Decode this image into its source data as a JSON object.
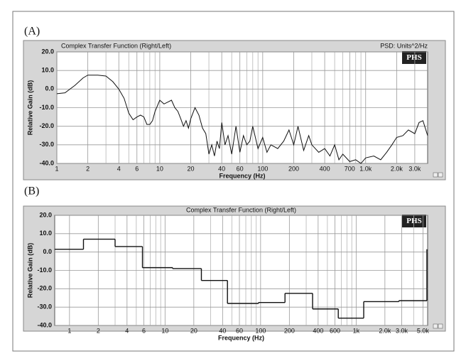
{
  "chart_data": [
    {
      "type": "line",
      "panel_label": "(A)",
      "title": "Complex Transfer Function (Right/Left)",
      "note": "PSD: Units^2/Hz",
      "badge": "PHS",
      "xlabel": "Frequency (Hz)",
      "ylabel": "Relative Gain (dB)",
      "xscale": "log",
      "grid": true,
      "color": "#111111",
      "title_align": "left",
      "xlim": [
        1,
        4000
      ],
      "ylim": [
        -40,
        20
      ],
      "xticks": [
        1,
        2,
        4,
        6,
        10,
        20,
        40,
        60,
        100,
        200,
        400,
        700,
        {
          "value": 1000,
          "label": "1.0k"
        },
        {
          "value": 2000,
          "label": "2.0k"
        },
        {
          "value": 3000,
          "label": "3.0k"
        }
      ],
      "minor_xticks": [
        3,
        5,
        7,
        8,
        9,
        30,
        50,
        70,
        80,
        90,
        300,
        500,
        600,
        800,
        900
      ],
      "yticks": [
        {
          "value": 20,
          "label": "20.0"
        },
        {
          "value": 10,
          "label": "10.0"
        },
        {
          "value": 0,
          "label": "0.0"
        },
        {
          "value": -10,
          "label": "-10.0"
        },
        {
          "value": -20,
          "label": "-20.0"
        },
        {
          "value": -30,
          "label": "-30.0"
        },
        {
          "value": -40,
          "label": "-40.0"
        }
      ],
      "x": [
        1,
        1.2,
        1.5,
        1.8,
        2,
        2.5,
        3,
        3.5,
        4,
        4.5,
        5,
        5.5,
        6,
        6.5,
        7,
        7.5,
        8,
        8.5,
        9,
        10,
        11,
        12,
        13,
        14,
        15,
        16,
        17,
        18,
        19,
        20,
        22,
        24,
        26,
        28,
        30,
        32,
        34,
        36,
        38,
        40,
        43,
        46,
        50,
        55,
        60,
        65,
        70,
        75,
        80,
        90,
        100,
        110,
        120,
        140,
        160,
        180,
        200,
        220,
        250,
        280,
        300,
        350,
        400,
        450,
        500,
        550,
        600,
        700,
        800,
        900,
        1000,
        1200,
        1400,
        1600,
        1800,
        2000,
        2300,
        2600,
        3000,
        3300,
        3600,
        4000
      ],
      "values": [
        -2.5,
        -2,
        2,
        6,
        7.5,
        7.5,
        7,
        4,
        0,
        -5,
        -13,
        -16.5,
        -15,
        -14,
        -15,
        -19,
        -19,
        -17,
        -12,
        -6,
        -8,
        -7,
        -6,
        -10,
        -12,
        -16,
        -20,
        -17,
        -21,
        -16,
        -10,
        -14,
        -21,
        -24,
        -35,
        -30,
        -36,
        -28,
        -32,
        -18,
        -30,
        -25,
        -35,
        -20,
        -34,
        -25,
        -30,
        -28,
        -20,
        -32,
        -26,
        -34,
        -30,
        -32,
        -28,
        -22,
        -30,
        -20,
        -33,
        -25,
        -30,
        -34,
        -32,
        -36,
        -30,
        -38,
        -35,
        -39,
        -38,
        -40,
        -37,
        -36,
        -38,
        -34,
        -30,
        -26,
        -25,
        -22,
        -24,
        -18,
        -17,
        -25
      ]
    },
    {
      "type": "step",
      "panel_label": "(B)",
      "title": "Complex Transfer Function (Right/Left)",
      "badge": "PHS",
      "xlabel": "Frequency (Hz)",
      "ylabel": "Relative Gain (dB)",
      "xscale": "log",
      "grid": true,
      "color": "#111111",
      "title_align": "center",
      "xlim": [
        0.7,
        5600
      ],
      "ylim": [
        -40,
        20
      ],
      "xticks": [
        1,
        2,
        4,
        6,
        10,
        20,
        40,
        60,
        100,
        200,
        400,
        600,
        {
          "value": 1000,
          "label": "1k"
        },
        {
          "value": 2000,
          "label": "2.0k"
        },
        {
          "value": 3000,
          "label": "3.0k"
        },
        {
          "value": 5000,
          "label": "5.0k"
        }
      ],
      "minor_xticks": [
        3,
        5,
        7,
        8,
        9,
        30,
        50,
        70,
        80,
        90,
        300,
        500,
        700,
        800,
        900,
        4000
      ],
      "yticks": [
        {
          "value": 20,
          "label": "20.0"
        },
        {
          "value": 10,
          "label": "10.0"
        },
        {
          "value": 0,
          "label": "0.0"
        },
        {
          "value": -10,
          "label": "-10.0"
        },
        {
          "value": -20,
          "label": "-20.0"
        },
        {
          "value": -30,
          "label": "-30.0"
        },
        {
          "value": -40,
          "label": "-40.0"
        }
      ],
      "x": [
        0.7,
        1.4,
        3,
        5.8,
        12,
        24,
        45,
        95,
        180,
        350,
        650,
        1200,
        2800,
        5500
      ],
      "values": [
        1.5,
        7,
        3,
        -8.5,
        -9,
        -15.5,
        -28,
        -27.5,
        -22.5,
        -31,
        -36,
        -27,
        -26.5,
        1.5
      ]
    }
  ]
}
